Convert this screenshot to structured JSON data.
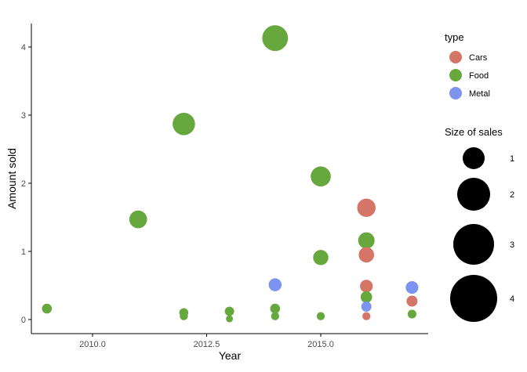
{
  "chart_data": {
    "type": "scatter",
    "title": "",
    "xlabel": "Year",
    "ylabel": "Amount sold",
    "xlim": [
      2008.6,
      2017.4
    ],
    "ylim": [
      -0.2,
      4.32
    ],
    "xticks": [
      2010.0,
      2012.5,
      2015.0
    ],
    "xtick_labels": [
      "2010.0",
      "2012.5",
      "2015.0"
    ],
    "yticks": [
      0,
      1,
      2,
      3,
      4
    ],
    "ytick_labels": [
      "0",
      "1",
      "2",
      "3",
      "4"
    ],
    "grid": false,
    "legend_position": "right",
    "colors": {
      "Cars": "#D47568",
      "Food": "#66A83D",
      "Metal": "#7C93F0"
    },
    "legend_type": {
      "title": "type",
      "entries": [
        {
          "label": "Cars",
          "color": "#D47568"
        },
        {
          "label": "Food",
          "color": "#66A83D"
        },
        {
          "label": "Metal",
          "color": "#7C93F0"
        }
      ]
    },
    "legend_size": {
      "title": "Size of sales",
      "entries": [
        {
          "label": "1",
          "value": 1
        },
        {
          "label": "2",
          "value": 2
        },
        {
          "label": "3",
          "value": 3
        },
        {
          "label": "4",
          "value": 4
        }
      ]
    },
    "series": [
      {
        "name": "Cars",
        "color": "#D47568",
        "points": [
          {
            "x": 2016,
            "y": 1.64,
            "size": 1.64
          },
          {
            "x": 2016,
            "y": 0.95,
            "size": 0.95
          },
          {
            "x": 2016,
            "y": 0.49,
            "size": 0.49
          },
          {
            "x": 2016,
            "y": 0.05,
            "size": 0.05
          },
          {
            "x": 2017,
            "y": 0.27,
            "size": 0.27
          }
        ]
      },
      {
        "name": "Food",
        "color": "#66A83D",
        "points": [
          {
            "x": 2009,
            "y": 0.16,
            "size": 0.16
          },
          {
            "x": 2011,
            "y": 1.47,
            "size": 1.47
          },
          {
            "x": 2012,
            "y": 2.87,
            "size": 2.87
          },
          {
            "x": 2012,
            "y": 0.1,
            "size": 0.1
          },
          {
            "x": 2012,
            "y": 0.05,
            "size": 0.05
          },
          {
            "x": 2013,
            "y": 0.12,
            "size": 0.12
          },
          {
            "x": 2013,
            "y": 0.01,
            "size": 0.01
          },
          {
            "x": 2014,
            "y": 4.13,
            "size": 4.13
          },
          {
            "x": 2014,
            "y": 0.16,
            "size": 0.16
          },
          {
            "x": 2014,
            "y": 0.05,
            "size": 0.05
          },
          {
            "x": 2015,
            "y": 2.1,
            "size": 2.1
          },
          {
            "x": 2015,
            "y": 0.91,
            "size": 0.91
          },
          {
            "x": 2015,
            "y": 0.05,
            "size": 0.05
          },
          {
            "x": 2016,
            "y": 1.16,
            "size": 1.16
          },
          {
            "x": 2016,
            "y": 0.33,
            "size": 0.33
          },
          {
            "x": 2017,
            "y": 0.08,
            "size": 0.08
          }
        ]
      },
      {
        "name": "Metal",
        "color": "#7C93F0",
        "points": [
          {
            "x": 2014,
            "y": 0.51,
            "size": 0.51
          },
          {
            "x": 2016,
            "y": 0.19,
            "size": 0.19
          },
          {
            "x": 2017,
            "y": 0.47,
            "size": 0.47
          }
        ]
      }
    ]
  }
}
